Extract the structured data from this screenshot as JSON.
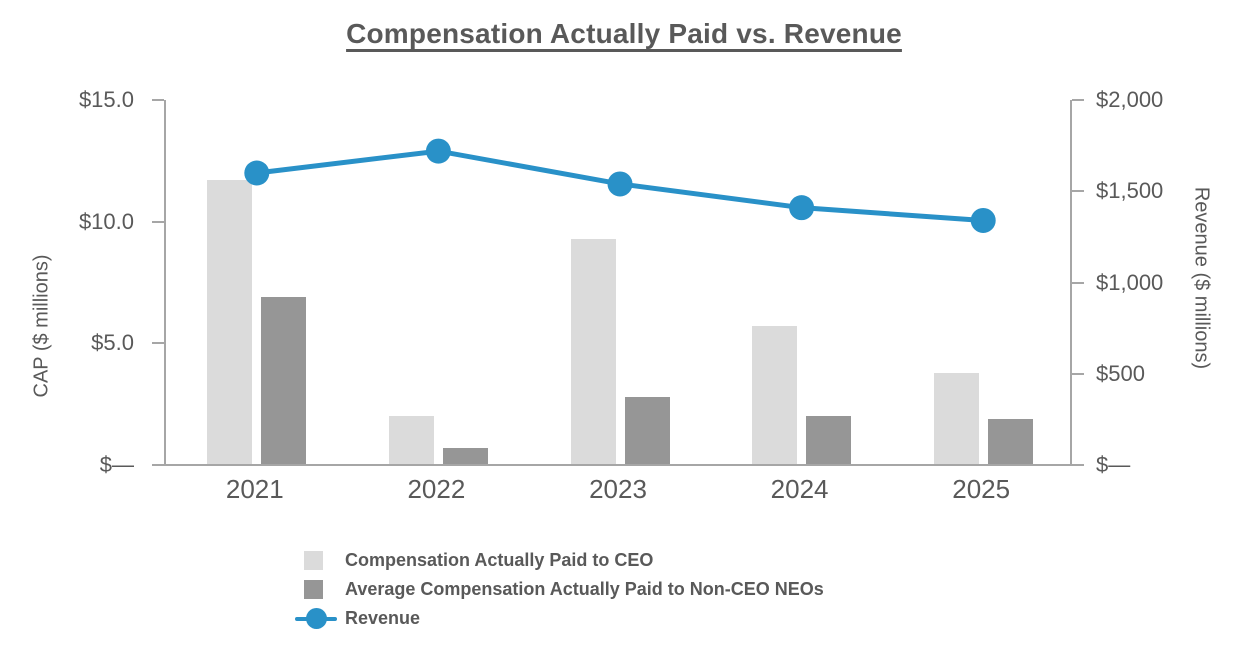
{
  "chart_data": {
    "type": "bar",
    "title": "Compensation Actually Paid vs. Revenue",
    "categories": [
      "2021",
      "2022",
      "2023",
      "2024",
      "2025"
    ],
    "series": [
      {
        "id": "ceo",
        "name": "Compensation Actually Paid to CEO",
        "chart_type": "bar",
        "axis": "left",
        "color": "#dbdbdb",
        "values": [
          11.7,
          2.0,
          9.3,
          5.7,
          3.8
        ]
      },
      {
        "id": "neo",
        "name": "Average Compensation Actually Paid to Non-CEO NEOs",
        "chart_type": "bar",
        "axis": "left",
        "color": "#969696",
        "values": [
          6.9,
          0.7,
          2.8,
          2.0,
          1.9
        ]
      },
      {
        "id": "revenue",
        "name": "Revenue",
        "chart_type": "line",
        "axis": "right",
        "color": "#2991c8",
        "values": [
          1600,
          1720,
          1540,
          1410,
          1340
        ]
      }
    ],
    "xlabel": "",
    "ylabel_left": "CAP ($ millions)",
    "ylabel_right": "Revenue ($ millions)",
    "ylim_left": [
      0,
      15
    ],
    "ylim_right": [
      0,
      2000
    ],
    "left_tick_labels": [
      "$15.0",
      "$10.0",
      "$5.0",
      "$—"
    ],
    "right_tick_labels": [
      "$2,000",
      "$1,500",
      "$1,000",
      "$500",
      "$—"
    ],
    "grid": false,
    "legend_position": "bottom-left",
    "colors": {
      "text": "#595959",
      "axis_line": "#a6a6a6"
    }
  }
}
